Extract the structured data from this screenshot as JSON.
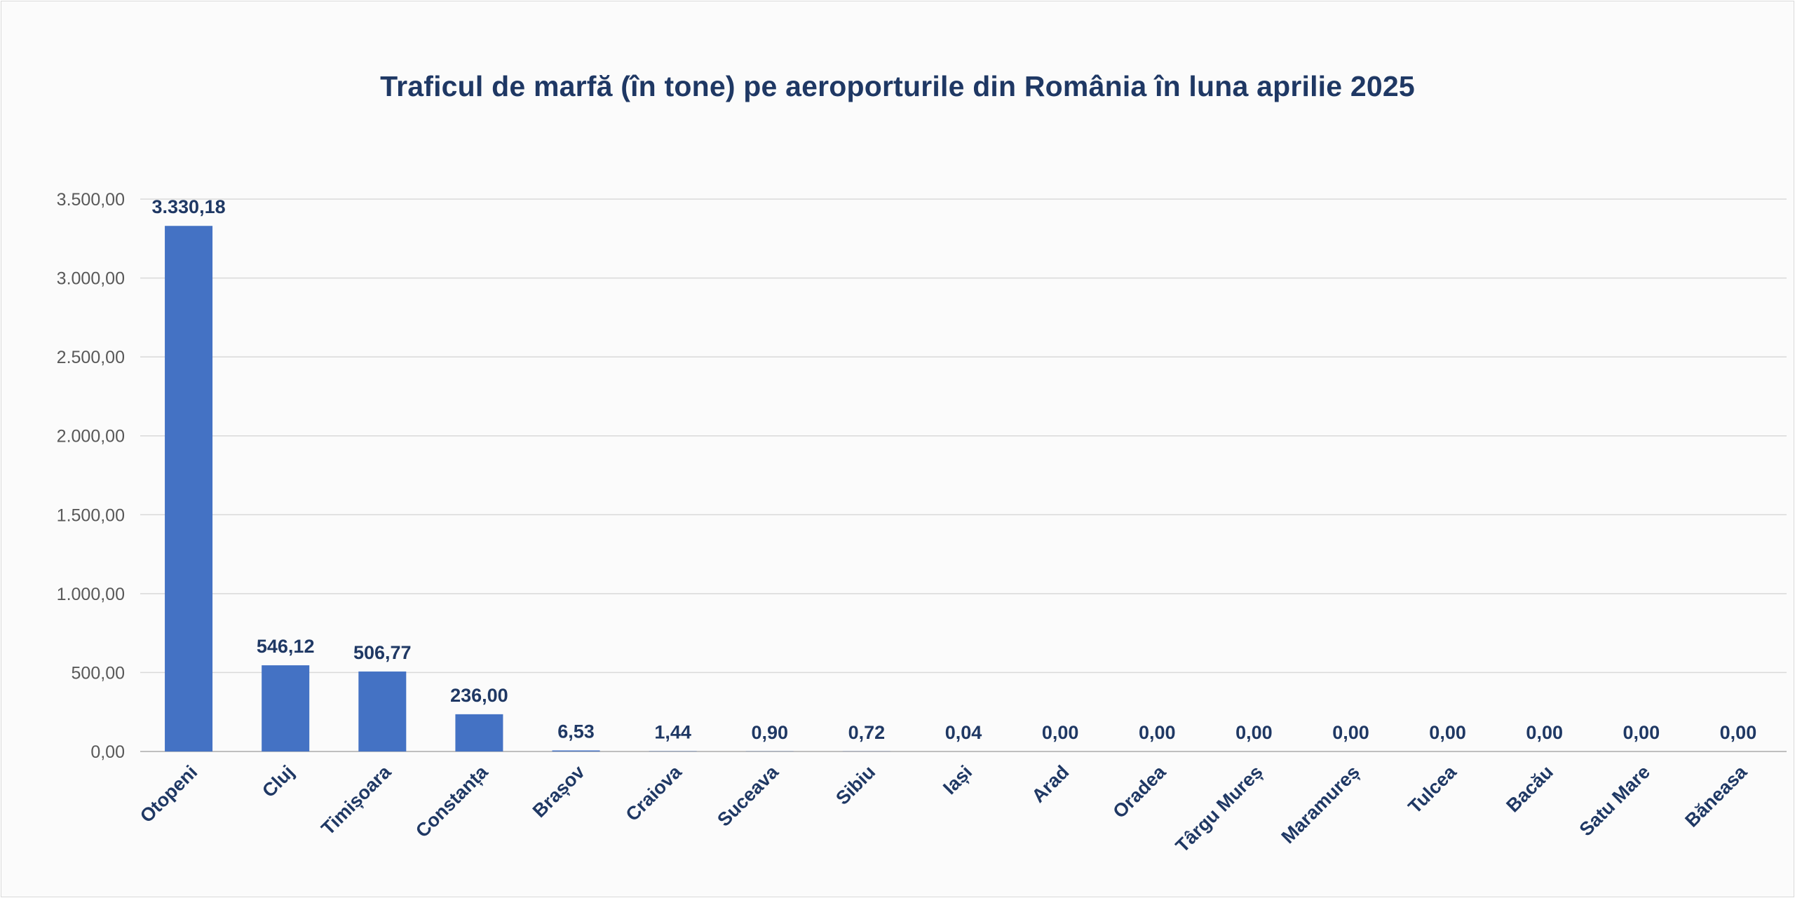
{
  "chart_data": {
    "type": "bar",
    "title": "Traficul de marfă (în tone) pe aeroporturile din România în luna aprilie 2025",
    "xlabel": "",
    "ylabel": "",
    "ylim": [
      0,
      3500
    ],
    "yticks": [
      0,
      500,
      1000,
      1500,
      2000,
      2500,
      3000,
      3500
    ],
    "ytick_labels": [
      "0,00",
      "500,00",
      "1.000,00",
      "1.500,00",
      "2.000,00",
      "2.500,00",
      "3.000,00",
      "3.500,00"
    ],
    "grid": true,
    "legend": "none",
    "bar_color": "#4472c4",
    "categories": [
      "Otopeni",
      "Cluj",
      "Timișoara",
      "Constanța",
      "Brașov",
      "Craiova",
      "Suceava",
      "Sibiu",
      "Iași",
      "Arad",
      "Oradea",
      "Târgu Mureș",
      "Maramureș",
      "Tulcea",
      "Bacău",
      "Satu Mare",
      "Băneasa"
    ],
    "values": [
      3330.18,
      546.12,
      506.77,
      236.0,
      6.53,
      1.44,
      0.9,
      0.72,
      0.04,
      0.0,
      0.0,
      0.0,
      0.0,
      0.0,
      0.0,
      0.0,
      0.0
    ],
    "value_labels": [
      "3.330,18",
      "546,12",
      "506,77",
      "236,00",
      "6,53",
      "1,44",
      "0,90",
      "0,72",
      "0,04",
      "0,00",
      "0,00",
      "0,00",
      "0,00",
      "0,00",
      "0,00",
      "0,00",
      "0,00"
    ]
  }
}
